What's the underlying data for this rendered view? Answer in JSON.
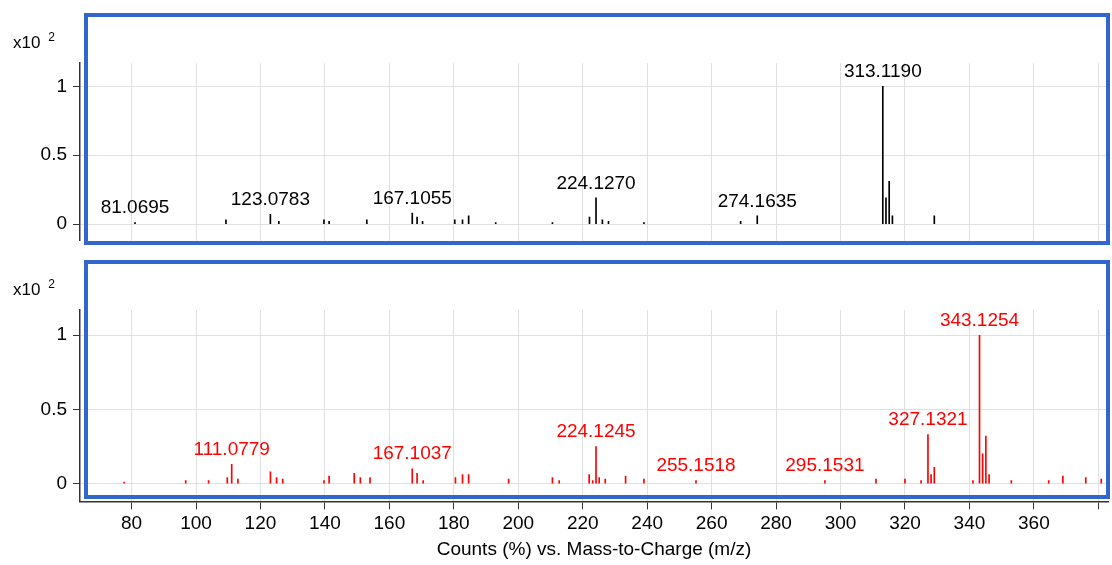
{
  "chart_data": [
    {
      "type": "bar",
      "ylabel": "x10 $^{2}$",
      "color": "#000000",
      "grid": true,
      "tick_labels": "y",
      "x": [
        81.0695,
        109.3,
        123.0783,
        125.7,
        139.7,
        141.3,
        153,
        167.1055,
        168.6,
        170.3,
        180.3,
        182.7,
        184.6,
        193,
        210.6,
        222.1,
        224.127,
        226.1,
        228,
        239,
        269,
        274.1635,
        313.119,
        314.1,
        315.1,
        316.1,
        329.1
      ],
      "values": [
        0.01,
        0.03,
        0.07,
        0.02,
        0.03,
        0.02,
        0.03,
        0.08,
        0.05,
        0.02,
        0.03,
        0.03,
        0.06,
        0.01,
        0.01,
        0.05,
        0.19,
        0.03,
        0.02,
        0.01,
        0.02,
        0.06,
        1,
        0.19,
        0.31,
        0.06,
        0.06
      ],
      "xlim": [
        64,
        383
      ],
      "xticks": [
        80,
        100,
        120,
        140,
        160,
        180,
        200,
        220,
        240,
        260,
        280,
        300,
        320,
        340,
        360,
        {
          "value": 380,
          "label": null
        }
      ],
      "ylim": [
        -0.12,
        1.17
      ],
      "yticks": [
        0,
        0.5,
        1
      ],
      "annotations": [
        {
          "text": "81.0695",
          "x": 81.0695,
          "y": 0.01
        },
        {
          "text": "123.0783",
          "x": 123.0783,
          "y": 0.07
        },
        {
          "text": "167.1055",
          "x": 167.1055,
          "y": 0.08
        },
        {
          "text": "224.1270",
          "x": 224.127,
          "y": 0.19
        },
        {
          "text": "274.1635",
          "x": 274.1635,
          "y": 0.06
        },
        {
          "text": "313.1190",
          "x": 313.119,
          "y": 1
        }
      ]
    },
    {
      "type": "bar",
      "ylabel": "x10 $^{2}$",
      "xlabel": "Counts (%) vs. Mass-to-Charge (m/z)",
      "color": "#ff0000",
      "grid": true,
      "x": [
        77.7,
        96.8,
        103.9,
        109.7,
        111.0779,
        113,
        123.1,
        125,
        126.9,
        139.7,
        141.3,
        149.1,
        151,
        154,
        167.1037,
        168.6,
        170.5,
        180.5,
        182.7,
        184.6,
        197,
        210.6,
        212.7,
        222,
        223.1,
        224.1245,
        225.1,
        227,
        233.3,
        239,
        255.1518,
        295.1531,
        311,
        320,
        325,
        327.1321,
        328.1,
        329.1,
        341.1,
        343.1254,
        344.1,
        345.1,
        346.1,
        353,
        364.6,
        369,
        376.1,
        380.9
      ],
      "values": [
        0.01,
        0.02,
        0.02,
        0.04,
        0.13,
        0.03,
        0.08,
        0.04,
        0.03,
        0.02,
        0.05,
        0.07,
        0.04,
        0.04,
        0.1,
        0.07,
        0.02,
        0.04,
        0.06,
        0.06,
        0.03,
        0.04,
        0.02,
        0.06,
        0.02,
        0.25,
        0.04,
        0.03,
        0.05,
        0.03,
        0.02,
        0.02,
        0.03,
        0.03,
        0.02,
        0.33,
        0.06,
        0.11,
        0.02,
        1,
        0.2,
        0.32,
        0.06,
        0.02,
        0.02,
        0.05,
        0.04,
        0.03
      ],
      "xlim": [
        64,
        383
      ],
      "xticks": [
        80,
        100,
        120,
        140,
        160,
        180,
        200,
        220,
        240,
        260,
        280,
        300,
        320,
        340,
        360,
        {
          "value": 380,
          "label": null
        }
      ],
      "ylim": [
        -0.12,
        1.17
      ],
      "yticks": [
        0,
        0.5,
        1
      ],
      "annotations": [
        {
          "text": "111.0779",
          "x": 111.0779,
          "y": 0.13
        },
        {
          "text": "167.1037",
          "x": 167.1037,
          "y": 0.1
        },
        {
          "text": "224.1245",
          "x": 224.1245,
          "y": 0.25
        },
        {
          "text": "255.1518",
          "x": 255.1518,
          "y": 0.02
        },
        {
          "text": "295.1531",
          "x": 295.1531,
          "y": 0.02
        },
        {
          "text": "327.1321",
          "x": 327.1321,
          "y": 0.33
        },
        {
          "text": "343.1254",
          "x": 343.1254,
          "y": 1
        }
      ]
    }
  ]
}
